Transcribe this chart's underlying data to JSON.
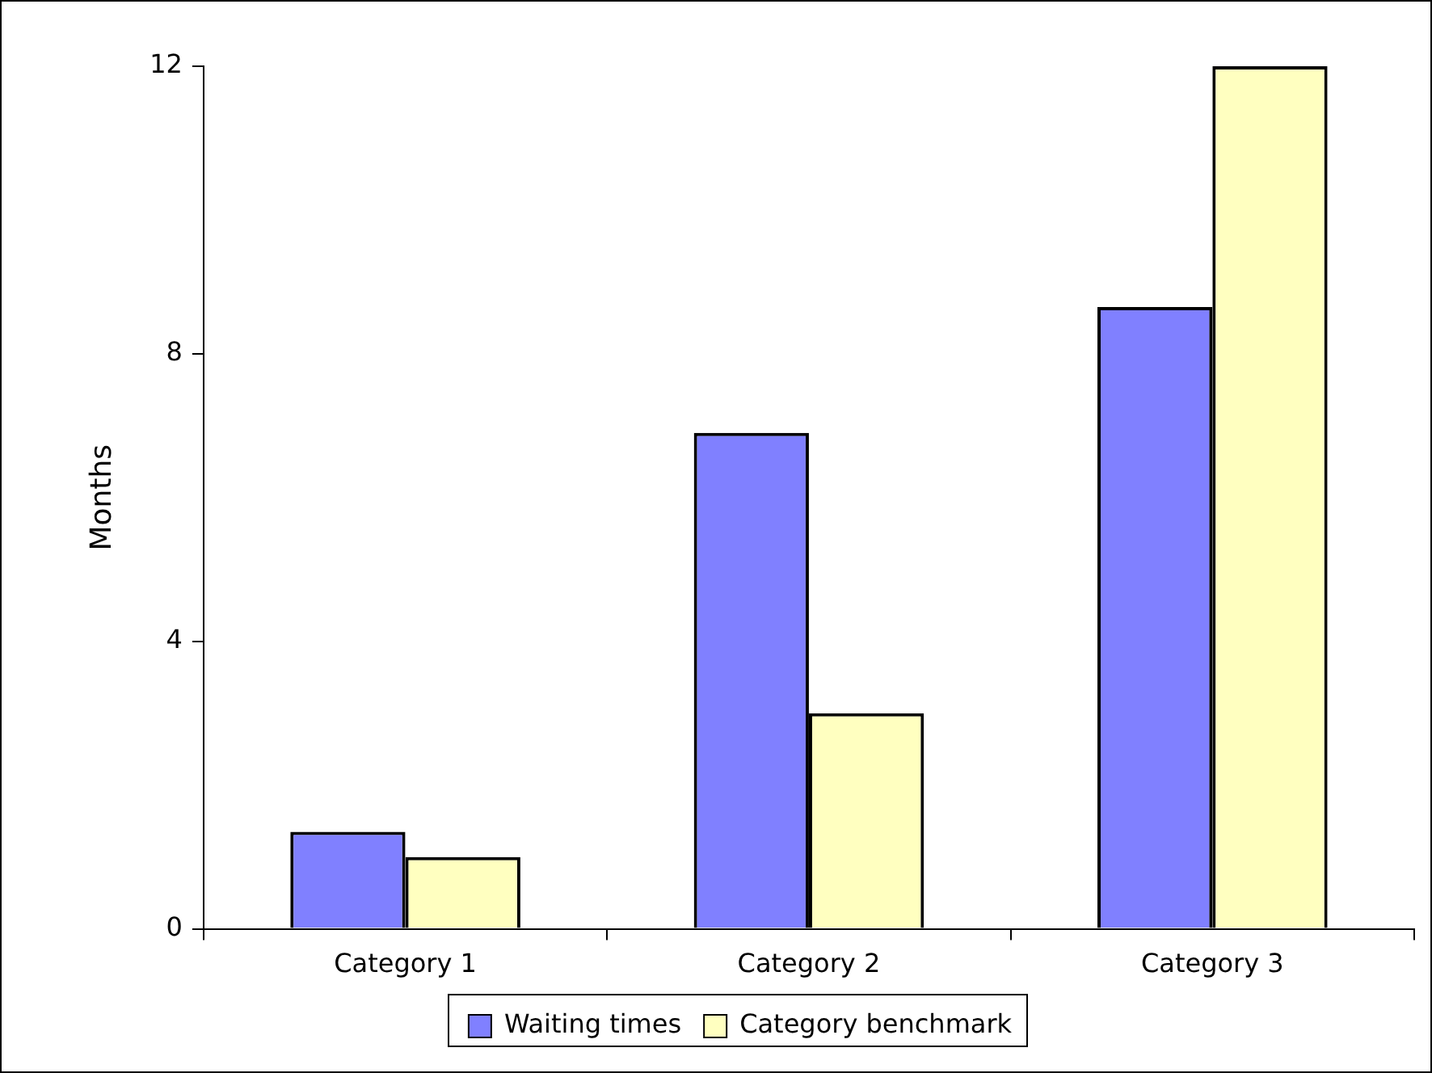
{
  "chart_data": {
    "type": "bar",
    "ylabel": "Months",
    "categories": [
      "Category 1",
      "Category 2",
      "Category 3"
    ],
    "series": [
      {
        "name": "Waiting times",
        "color": "#8080ff",
        "values": [
          1.35,
          6.9,
          8.65
        ]
      },
      {
        "name": "Category benchmark",
        "color": "#ffffc0",
        "values": [
          1,
          3,
          12
        ]
      }
    ],
    "ylim": [
      0,
      12
    ],
    "yticks": [
      0,
      4,
      8,
      12
    ],
    "grid": false,
    "legend": "bottom"
  }
}
